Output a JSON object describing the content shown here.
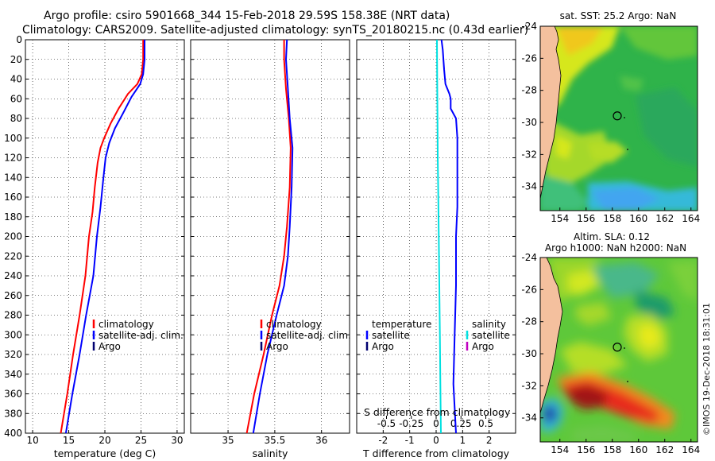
{
  "title_line1": "Argo profile: csiro 5901668_344 15-Feb-2018 29.59S 158.38E (NRT data)",
  "title_line2": "Climatology: CARS2009. Satellite-adjusted climatology: synTS_20180215.nc (0.43d earlier)",
  "colors": {
    "red": "#ff0000",
    "blue": "#0000ff",
    "navy": "#000070",
    "cyan": "#00e0e0",
    "magenta": "#c000c0"
  },
  "chart_data": [
    {
      "type": "line",
      "name": "temperature",
      "xlabel": "temperature (deg C)",
      "ylabel": "",
      "xlim": [
        9,
        31
      ],
      "ylim": [
        400,
        0
      ],
      "xticks": [
        "10",
        "15",
        "20",
        "25",
        "30"
      ],
      "xtick_values": [
        10,
        15,
        20,
        25,
        30
      ],
      "yticks": [
        "0",
        "20",
        "40",
        "60",
        "80",
        "100",
        "120",
        "140",
        "160",
        "180",
        "200",
        "220",
        "240",
        "260",
        "280",
        "300",
        "320",
        "340",
        "360",
        "380",
        "400"
      ],
      "ytick_values": [
        0,
        20,
        40,
        60,
        80,
        100,
        120,
        140,
        160,
        180,
        200,
        220,
        240,
        260,
        280,
        300,
        320,
        340,
        360,
        380,
        400
      ],
      "grid": true,
      "legend": [
        "climatology",
        "satellite-adj. clim.",
        "Argo"
      ],
      "series": [
        {
          "name": "climatology",
          "color": "#ff0000",
          "points": [
            [
              25.3,
              0
            ],
            [
              25.3,
              20
            ],
            [
              25.1,
              35
            ],
            [
              24.5,
              45
            ],
            [
              23.2,
              55
            ],
            [
              21.9,
              70
            ],
            [
              20.8,
              85
            ],
            [
              19.9,
              100
            ],
            [
              19.4,
              110
            ],
            [
              19.0,
              125
            ],
            [
              18.6,
              150
            ],
            [
              18.3,
              175
            ],
            [
              17.8,
              200
            ],
            [
              17.3,
              240
            ],
            [
              16.5,
              280
            ],
            [
              15.6,
              320
            ],
            [
              14.8,
              360
            ],
            [
              13.9,
              400
            ]
          ]
        },
        {
          "name": "satellite-adj. clim.",
          "color": "#0000ff",
          "points": [
            [
              25.5,
              0
            ],
            [
              25.5,
              20
            ],
            [
              25.3,
              35
            ],
            [
              24.9,
              45
            ],
            [
              23.7,
              58
            ],
            [
              22.5,
              75
            ],
            [
              21.4,
              90
            ],
            [
              20.6,
              105
            ],
            [
              20.1,
              120
            ],
            [
              19.8,
              140
            ],
            [
              19.4,
              170
            ],
            [
              18.9,
              200
            ],
            [
              18.4,
              240
            ],
            [
              17.4,
              280
            ],
            [
              16.5,
              320
            ],
            [
              15.5,
              360
            ],
            [
              14.6,
              400
            ]
          ]
        },
        {
          "name": "Argo",
          "color": "#000070",
          "points": []
        }
      ]
    },
    {
      "type": "line",
      "name": "salinity",
      "xlabel": "salinity",
      "xlim": [
        34.6,
        36.3
      ],
      "ylim": [
        400,
        0
      ],
      "xticks": [
        "35",
        "35.5",
        "36"
      ],
      "xtick_values": [
        35,
        35.5,
        36
      ],
      "grid": true,
      "legend": [
        "climatology",
        "satellite-adj. clim.",
        "Argo"
      ],
      "series": [
        {
          "name": "climatology",
          "color": "#ff0000",
          "points": [
            [
              35.6,
              0
            ],
            [
              35.6,
              20
            ],
            [
              35.62,
              50
            ],
            [
              35.65,
              80
            ],
            [
              35.67,
              110
            ],
            [
              35.66,
              150
            ],
            [
              35.63,
              190
            ],
            [
              35.6,
              220
            ],
            [
              35.55,
              250
            ],
            [
              35.47,
              280
            ],
            [
              35.38,
              320
            ],
            [
              35.28,
              360
            ],
            [
              35.2,
              400
            ]
          ]
        },
        {
          "name": "satellite-adj. clim.",
          "color": "#0000ff",
          "points": [
            [
              35.63,
              0
            ],
            [
              35.62,
              20
            ],
            [
              35.64,
              50
            ],
            [
              35.66,
              80
            ],
            [
              35.69,
              110
            ],
            [
              35.68,
              150
            ],
            [
              35.66,
              190
            ],
            [
              35.64,
              220
            ],
            [
              35.6,
              250
            ],
            [
              35.52,
              280
            ],
            [
              35.42,
              320
            ],
            [
              35.34,
              360
            ],
            [
              35.27,
              400
            ]
          ]
        },
        {
          "name": "Argo",
          "color": "#000070",
          "points": []
        }
      ]
    },
    {
      "type": "line",
      "name": "difference",
      "xlabel": "T difference from climatology",
      "top_axis_label": "S difference from climatology",
      "xlim": [
        -3,
        3
      ],
      "ylim": [
        400,
        0
      ],
      "xticks": [
        "-2",
        "-1",
        "0",
        "1",
        "2"
      ],
      "xtick_values": [
        -2,
        -1,
        0,
        1,
        2
      ],
      "sticks": [
        "-0.5",
        "-0.25",
        "0",
        "0.25",
        "0.5"
      ],
      "stick_values": [
        -0.5,
        -0.25,
        0,
        0.25,
        0.5
      ],
      "grid": true,
      "legend_temperature": {
        "title": "temperature",
        "items": [
          "satellite",
          "Argo"
        ]
      },
      "legend_salinity": {
        "title": "salinity",
        "items": [
          "satellite",
          "Argo"
        ]
      },
      "series": [
        {
          "name": "temperature satellite",
          "color": "#0000ff",
          "points": [
            [
              0.2,
              0
            ],
            [
              0.25,
              10
            ],
            [
              0.3,
              30
            ],
            [
              0.35,
              45
            ],
            [
              0.5,
              55
            ],
            [
              0.55,
              60
            ],
            [
              0.55,
              70
            ],
            [
              0.75,
              80
            ],
            [
              0.8,
              100
            ],
            [
              0.8,
              130
            ],
            [
              0.8,
              170
            ],
            [
              0.75,
              200
            ],
            [
              0.75,
              250
            ],
            [
              0.7,
              300
            ],
            [
              0.65,
              350
            ],
            [
              0.75,
              400
            ]
          ]
        },
        {
          "name": "salinity satellite",
          "color": "#00e0e0",
          "points": [
            [
              0.03,
              0
            ],
            [
              0.04,
              40
            ],
            [
              0.05,
              80
            ],
            [
              0.06,
              120
            ],
            [
              0.08,
              160
            ],
            [
              0.1,
              200
            ],
            [
              0.12,
              250
            ],
            [
              0.14,
              300
            ],
            [
              0.16,
              350
            ],
            [
              0.18,
              400
            ]
          ]
        }
      ]
    }
  ],
  "maps": {
    "sst": {
      "title": "sat. SST: 25.2 Argo: NaN",
      "lon_ticks": [
        "154",
        "156",
        "158",
        "160",
        "162",
        "164"
      ],
      "lon_values": [
        154,
        156,
        158,
        160,
        162,
        164
      ],
      "lat_ticks": [
        "-24",
        "-26",
        "-28",
        "-30",
        "-32",
        "-34"
      ],
      "lat_values": [
        -24,
        -26,
        -28,
        -30,
        -32,
        -34
      ],
      "lon_range": [
        152.5,
        164.5
      ],
      "lat_range": [
        -24,
        -35.5
      ],
      "profile_lon": 158.38,
      "profile_lat": -29.59
    },
    "sla": {
      "title1": "Altim. SLA: 0.12",
      "title2": "Argo h1000: NaN h2000: NaN",
      "lon_ticks": [
        "154",
        "156",
        "158",
        "160",
        "162",
        "164"
      ],
      "lon_values": [
        154,
        156,
        158,
        160,
        162,
        164
      ],
      "lat_ticks": [
        "-24",
        "-26",
        "-28",
        "-30",
        "-32",
        "-34"
      ],
      "lat_values": [
        -24,
        -26,
        -28,
        -30,
        -32,
        -34
      ],
      "lon_range": [
        152.5,
        164.5
      ],
      "lat_range": [
        -24,
        -35.5
      ],
      "profile_lon": 158.38,
      "profile_lat": -29.59
    }
  },
  "watermark": "©IMOS 19-Dec-2018 18:31:01"
}
